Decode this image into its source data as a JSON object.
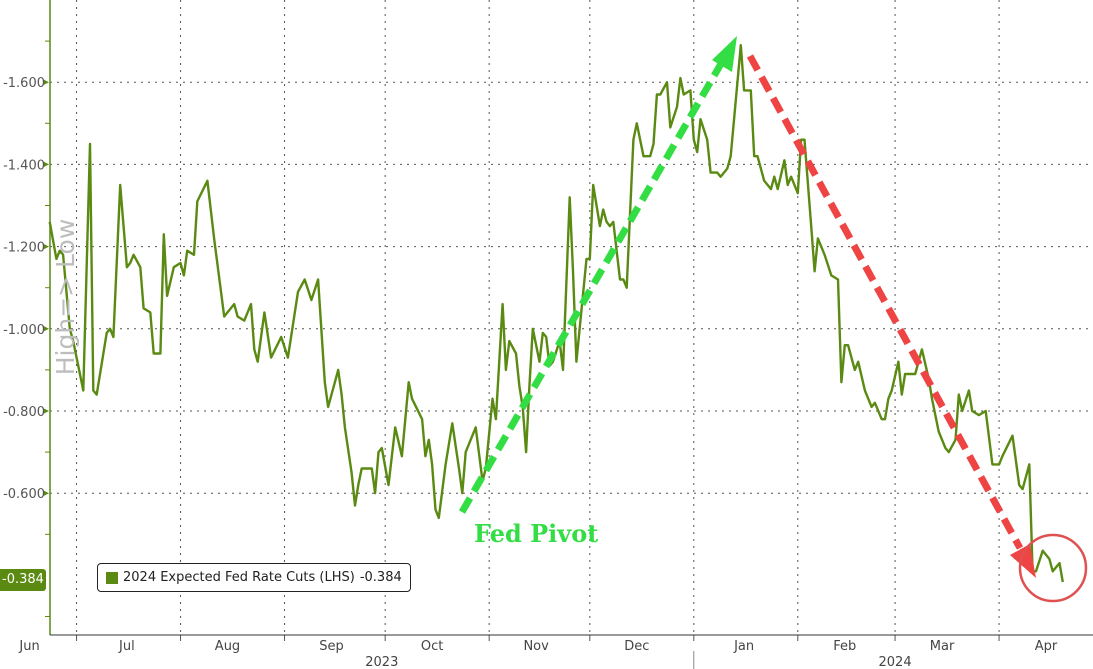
{
  "chart_data": {
    "type": "line",
    "ylabel": "High=> Low",
    "y_inverted": true,
    "ylim": [
      -1.8,
      -0.255
    ],
    "yticks": [
      -1.6,
      -1.4,
      -1.2,
      -1.0,
      -0.8,
      -0.6
    ],
    "ytick_labels": [
      "-1.600",
      "-1.400",
      "-1.200",
      "-1.000",
      "-0.800",
      "-0.600"
    ],
    "xlim": [
      "2023-06-21",
      "2024-04-29"
    ],
    "grid": true,
    "month_gridlines": [
      "2023-07-01",
      "2023-08-01",
      "2023-09-01",
      "2023-10-01",
      "2023-11-01",
      "2023-12-01",
      "2024-01-01",
      "2024-02-01",
      "2024-03-01",
      "2024-04-01"
    ],
    "month_labels": [
      {
        "label": "Jun",
        "date": "2023-06-17"
      },
      {
        "label": "Jul",
        "date": "2023-07-16"
      },
      {
        "label": "Aug",
        "date": "2023-08-15"
      },
      {
        "label": "Sep",
        "date": "2023-09-15"
      },
      {
        "label": "Oct",
        "date": "2023-10-15"
      },
      {
        "label": "Nov",
        "date": "2023-11-15"
      },
      {
        "label": "Dec",
        "date": "2023-12-15"
      },
      {
        "label": "Jan",
        "date": "2024-01-16"
      },
      {
        "label": "Feb",
        "date": "2024-02-15"
      },
      {
        "label": "Mar",
        "date": "2024-03-15"
      },
      {
        "label": "Apr",
        "date": "2024-04-15"
      }
    ],
    "year_labels": [
      {
        "label": "2023",
        "date": "2023-09-30"
      },
      {
        "label": "2024",
        "date": "2024-03-01"
      }
    ],
    "legend_position": "bottom-left",
    "series": [
      {
        "name": "2024 Expected Fed Rate Cuts (LHS)",
        "last_value": "-0.384",
        "color": "#5a8a12",
        "points": [
          [
            "2023-06-23",
            -1.26
          ],
          [
            "2023-06-25",
            -1.17
          ],
          [
            "2023-06-26",
            -1.19
          ],
          [
            "2023-06-27",
            -1.18
          ],
          [
            "2023-06-29",
            -1.0
          ],
          [
            "2023-06-30",
            -0.97
          ],
          [
            "2023-07-03",
            -0.85
          ],
          [
            "2023-07-05",
            -1.45
          ],
          [
            "2023-07-06",
            -0.85
          ],
          [
            "2023-07-07",
            -0.84
          ],
          [
            "2023-07-10",
            -0.99
          ],
          [
            "2023-07-11",
            -1.0
          ],
          [
            "2023-07-12",
            -0.98
          ],
          [
            "2023-07-14",
            -1.35
          ],
          [
            "2023-07-16",
            -1.15
          ],
          [
            "2023-07-17",
            -1.16
          ],
          [
            "2023-07-18",
            -1.18
          ],
          [
            "2023-07-20",
            -1.15
          ],
          [
            "2023-07-21",
            -1.05
          ],
          [
            "2023-07-23",
            -1.04
          ],
          [
            "2023-07-24",
            -0.94
          ],
          [
            "2023-07-26",
            -0.94
          ],
          [
            "2023-07-27",
            -1.23
          ],
          [
            "2023-07-28",
            -1.08
          ],
          [
            "2023-07-30",
            -1.15
          ],
          [
            "2023-08-01",
            -1.16
          ],
          [
            "2023-08-02",
            -1.13
          ],
          [
            "2023-08-03",
            -1.19
          ],
          [
            "2023-08-05",
            -1.18
          ],
          [
            "2023-08-06",
            -1.31
          ],
          [
            "2023-08-09",
            -1.36
          ],
          [
            "2023-08-11",
            -1.22
          ],
          [
            "2023-08-14",
            -1.03
          ],
          [
            "2023-08-15",
            -1.04
          ],
          [
            "2023-08-17",
            -1.06
          ],
          [
            "2023-08-18",
            -1.03
          ],
          [
            "2023-08-20",
            -1.02
          ],
          [
            "2023-08-22",
            -1.06
          ],
          [
            "2023-08-23",
            -0.95
          ],
          [
            "2023-08-24",
            -0.92
          ],
          [
            "2023-08-26",
            -1.04
          ],
          [
            "2023-08-28",
            -0.93
          ],
          [
            "2023-08-31",
            -0.98
          ],
          [
            "2023-09-02",
            -0.93
          ],
          [
            "2023-09-05",
            -1.09
          ],
          [
            "2023-09-07",
            -1.12
          ],
          [
            "2023-09-09",
            -1.07
          ],
          [
            "2023-09-11",
            -1.12
          ],
          [
            "2023-09-13",
            -0.87
          ],
          [
            "2023-09-14",
            -0.81
          ],
          [
            "2023-09-16",
            -0.87
          ],
          [
            "2023-09-17",
            -0.9
          ],
          [
            "2023-09-18",
            -0.84
          ],
          [
            "2023-09-19",
            -0.76
          ],
          [
            "2023-09-21",
            -0.65
          ],
          [
            "2023-09-22",
            -0.57
          ],
          [
            "2023-09-23",
            -0.62
          ],
          [
            "2023-09-24",
            -0.66
          ],
          [
            "2023-09-25",
            -0.66
          ],
          [
            "2023-09-27",
            -0.66
          ],
          [
            "2023-09-28",
            -0.6
          ],
          [
            "2023-09-29",
            -0.7
          ],
          [
            "2023-09-30",
            -0.71
          ],
          [
            "2023-10-02",
            -0.62
          ],
          [
            "2023-10-04",
            -0.76
          ],
          [
            "2023-10-06",
            -0.69
          ],
          [
            "2023-10-08",
            -0.87
          ],
          [
            "2023-10-09",
            -0.83
          ],
          [
            "2023-10-12",
            -0.78
          ],
          [
            "2023-10-13",
            -0.69
          ],
          [
            "2023-10-14",
            -0.73
          ],
          [
            "2023-10-15",
            -0.67
          ],
          [
            "2023-10-16",
            -0.56
          ],
          [
            "2023-10-17",
            -0.54
          ],
          [
            "2023-10-19",
            -0.67
          ],
          [
            "2023-10-21",
            -0.77
          ],
          [
            "2023-10-23",
            -0.66
          ],
          [
            "2023-10-24",
            -0.6
          ],
          [
            "2023-10-25",
            -0.7
          ],
          [
            "2023-10-28",
            -0.76
          ],
          [
            "2023-10-30",
            -0.63
          ],
          [
            "2023-10-31",
            -0.66
          ],
          [
            "2023-11-02",
            -0.83
          ],
          [
            "2023-11-03",
            -0.78
          ],
          [
            "2023-11-05",
            -1.06
          ],
          [
            "2023-11-06",
            -0.9
          ],
          [
            "2023-11-07",
            -0.97
          ],
          [
            "2023-11-09",
            -0.94
          ],
          [
            "2023-11-10",
            -0.86
          ],
          [
            "2023-11-11",
            -0.81
          ],
          [
            "2023-11-12",
            -0.7
          ],
          [
            "2023-11-13",
            -0.86
          ],
          [
            "2023-11-14",
            -1.0
          ],
          [
            "2023-11-16",
            -0.92
          ],
          [
            "2023-11-17",
            -0.99
          ],
          [
            "2023-11-18",
            -0.98
          ],
          [
            "2023-11-19",
            -0.91
          ],
          [
            "2023-11-20",
            -0.92
          ],
          [
            "2023-11-22",
            -0.97
          ],
          [
            "2023-11-23",
            -0.9
          ],
          [
            "2023-11-25",
            -1.32
          ],
          [
            "2023-11-26",
            -1.14
          ],
          [
            "2023-11-27",
            -0.92
          ],
          [
            "2023-11-30",
            -1.17
          ],
          [
            "2023-12-01",
            -1.17
          ],
          [
            "2023-12-02",
            -1.35
          ],
          [
            "2023-12-04",
            -1.25
          ],
          [
            "2023-12-05",
            -1.29
          ],
          [
            "2023-12-06",
            -1.26
          ],
          [
            "2023-12-07",
            -1.25
          ],
          [
            "2023-12-08",
            -1.26
          ],
          [
            "2023-12-10",
            -1.12
          ],
          [
            "2023-12-11",
            -1.12
          ],
          [
            "2023-12-12",
            -1.1
          ],
          [
            "2023-12-14",
            -1.46
          ],
          [
            "2023-12-15",
            -1.5
          ],
          [
            "2023-12-17",
            -1.42
          ],
          [
            "2023-12-19",
            -1.42
          ],
          [
            "2023-12-20",
            -1.45
          ],
          [
            "2023-12-21",
            -1.57
          ],
          [
            "2023-12-22",
            -1.57
          ],
          [
            "2023-12-24",
            -1.6
          ],
          [
            "2023-12-25",
            -1.49
          ],
          [
            "2023-12-27",
            -1.54
          ],
          [
            "2023-12-28",
            -1.61
          ],
          [
            "2023-12-29",
            -1.57
          ],
          [
            "2023-12-31",
            -1.58
          ],
          [
            "2024-01-01",
            -1.46
          ],
          [
            "2024-01-02",
            -1.43
          ],
          [
            "2024-01-03",
            -1.51
          ],
          [
            "2024-01-05",
            -1.46
          ],
          [
            "2024-01-06",
            -1.38
          ],
          [
            "2024-01-08",
            -1.38
          ],
          [
            "2024-01-09",
            -1.37
          ],
          [
            "2024-01-11",
            -1.39
          ],
          [
            "2024-01-12",
            -1.42
          ],
          [
            "2024-01-15",
            -1.69
          ],
          [
            "2024-01-16",
            -1.58
          ],
          [
            "2024-01-18",
            -1.58
          ],
          [
            "2024-01-19",
            -1.42
          ],
          [
            "2024-01-20",
            -1.42
          ],
          [
            "2024-01-22",
            -1.36
          ],
          [
            "2024-01-24",
            -1.34
          ],
          [
            "2024-01-25",
            -1.37
          ],
          [
            "2024-01-26",
            -1.34
          ],
          [
            "2024-01-28",
            -1.41
          ],
          [
            "2024-01-29",
            -1.35
          ],
          [
            "2024-01-30",
            -1.37
          ],
          [
            "2024-02-01",
            -1.33
          ],
          [
            "2024-02-02",
            -1.46
          ],
          [
            "2024-02-03",
            -1.46
          ],
          [
            "2024-02-05",
            -1.25
          ],
          [
            "2024-02-06",
            -1.14
          ],
          [
            "2024-02-07",
            -1.22
          ],
          [
            "2024-02-09",
            -1.18
          ],
          [
            "2024-02-11",
            -1.13
          ],
          [
            "2024-02-13",
            -1.12
          ],
          [
            "2024-02-14",
            -0.87
          ],
          [
            "2024-02-15",
            -0.96
          ],
          [
            "2024-02-16",
            -0.96
          ],
          [
            "2024-02-18",
            -0.9
          ],
          [
            "2024-02-19",
            -0.92
          ],
          [
            "2024-02-21",
            -0.85
          ],
          [
            "2024-02-23",
            -0.81
          ],
          [
            "2024-02-24",
            -0.82
          ],
          [
            "2024-02-26",
            -0.78
          ],
          [
            "2024-02-27",
            -0.78
          ],
          [
            "2024-02-28",
            -0.83
          ],
          [
            "2024-02-29",
            -0.85
          ],
          [
            "2024-03-02",
            -0.92
          ],
          [
            "2024-03-03",
            -0.84
          ],
          [
            "2024-03-04",
            -0.89
          ],
          [
            "2024-03-07",
            -0.89
          ],
          [
            "2024-03-09",
            -0.95
          ],
          [
            "2024-03-11",
            -0.88
          ],
          [
            "2024-03-12",
            -0.83
          ],
          [
            "2024-03-14",
            -0.75
          ],
          [
            "2024-03-16",
            -0.71
          ],
          [
            "2024-03-17",
            -0.7
          ],
          [
            "2024-03-19",
            -0.73
          ],
          [
            "2024-03-20",
            -0.84
          ],
          [
            "2024-03-21",
            -0.8
          ],
          [
            "2024-03-23",
            -0.85
          ],
          [
            "2024-03-24",
            -0.8
          ],
          [
            "2024-03-26",
            -0.79
          ],
          [
            "2024-03-28",
            -0.8
          ],
          [
            "2024-03-30",
            -0.67
          ],
          [
            "2024-04-01",
            -0.67
          ],
          [
            "2024-04-02",
            -0.69
          ],
          [
            "2024-04-05",
            -0.74
          ],
          [
            "2024-04-07",
            -0.62
          ],
          [
            "2024-04-08",
            -0.61
          ],
          [
            "2024-04-10",
            -0.67
          ],
          [
            "2024-04-11",
            -0.41
          ],
          [
            "2024-04-12",
            -0.41
          ],
          [
            "2024-04-14",
            -0.46
          ],
          [
            "2024-04-16",
            -0.44
          ],
          [
            "2024-04-17",
            -0.41
          ],
          [
            "2024-04-19",
            -0.43
          ],
          [
            "2024-04-20",
            -0.384
          ]
        ]
      }
    ],
    "annotations": {
      "text": "Fed Pivot",
      "up_arrow_color": "#33dd44",
      "down_arrow_color": "#ee4444",
      "circle_color": "#e05050"
    }
  }
}
